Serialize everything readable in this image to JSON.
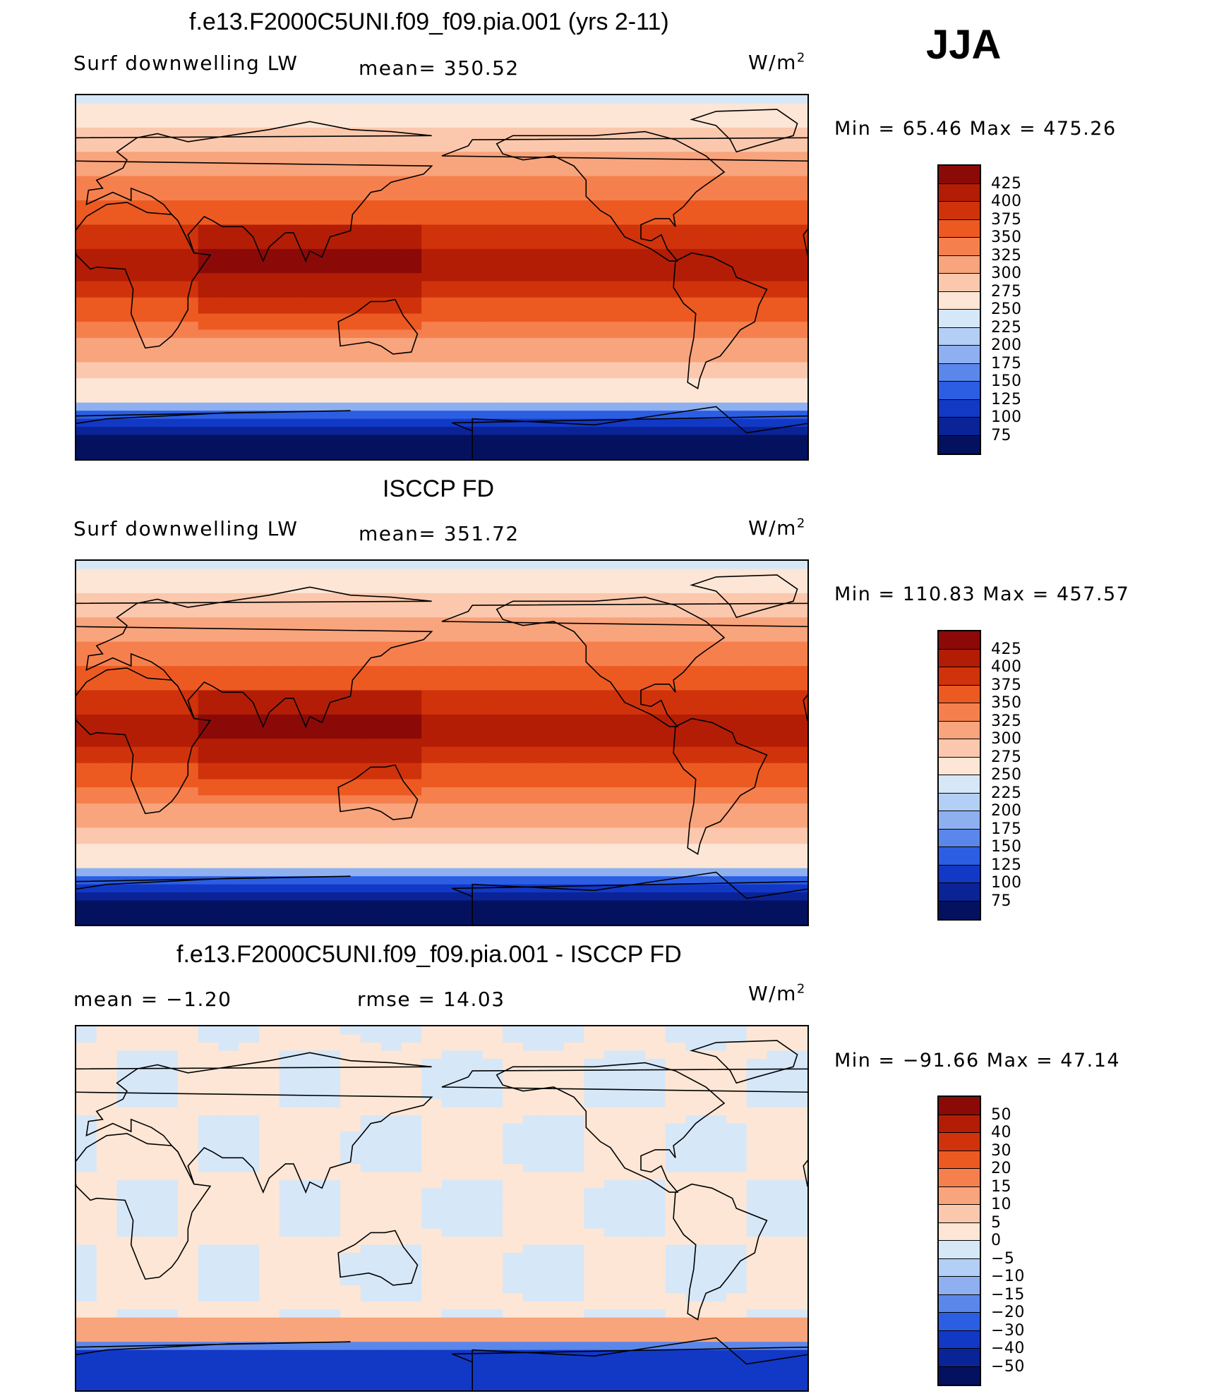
{
  "season": "JJA",
  "panels": [
    {
      "title": "f.e13.F2000C5UNI.f09_f09.pia.001 (yrs 2-11)",
      "left_label": "Surf  downwelling  LW",
      "center_label": "mean=  350.52",
      "units_text": "W/m",
      "units_sup": "2",
      "minmax": "Min  =    65.46  Max  =  475.26",
      "map_kind": "model"
    },
    {
      "title": "ISCCP FD",
      "left_label": "Surf  downwelling  LW",
      "center_label": "mean=  351.72",
      "units_text": "W/m",
      "units_sup": "2",
      "minmax": "Min  =  110.83  Max  =  457.57",
      "map_kind": "obs"
    },
    {
      "title": "f.e13.F2000C5UNI.f09_f09.pia.001 - ISCCP FD",
      "left_label": "mean  =    −1.20",
      "center_label": "rmse  =    14.03",
      "units_text": "W/m",
      "units_sup": "2",
      "minmax": "Min  =  −91.66  Max  =    47.14",
      "map_kind": "diff"
    }
  ],
  "chart_data": [
    {
      "type": "heatmap",
      "title": "f.e13.F2000C5UNI.f09_f09.pia.001 (yrs 2-11)",
      "variable": "Surf  downwelling  LW",
      "units": "W/m2",
      "mean": 350.52,
      "min": 65.46,
      "max": 475.26,
      "colorbar_levels": [
        425,
        400,
        375,
        350,
        325,
        300,
        275,
        250,
        225,
        200,
        175,
        150,
        125,
        100,
        75
      ],
      "colorbar_colors": [
        "#8b0a08",
        "#b31d06",
        "#d0330b",
        "#ec5a22",
        "#f5804e",
        "#f8a47c",
        "#fbc8ad",
        "#fde6d5",
        "#d6e7f8",
        "#b4cff5",
        "#8eb0f1",
        "#5c87ea",
        "#2c5ee3",
        "#1238c6",
        "#0a2396",
        "#04115f"
      ]
    },
    {
      "type": "heatmap",
      "title": "ISCCP FD",
      "variable": "Surf  downwelling  LW",
      "units": "W/m2",
      "mean": 351.72,
      "min": 110.83,
      "max": 457.57,
      "colorbar_levels": [
        425,
        400,
        375,
        350,
        325,
        300,
        275,
        250,
        225,
        200,
        175,
        150,
        125,
        100,
        75
      ],
      "colorbar_colors": [
        "#8b0a08",
        "#b31d06",
        "#d0330b",
        "#ec5a22",
        "#f5804e",
        "#f8a47c",
        "#fbc8ad",
        "#fde6d5",
        "#d6e7f8",
        "#b4cff5",
        "#8eb0f1",
        "#5c87ea",
        "#2c5ee3",
        "#1238c6",
        "#0a2396",
        "#04115f"
      ]
    },
    {
      "type": "heatmap",
      "title": "f.e13.F2000C5UNI.f09_f09.pia.001 - ISCCP FD",
      "units": "W/m2",
      "mean": -1.2,
      "rmse": 14.03,
      "min": -91.66,
      "max": 47.14,
      "colorbar_levels": [
        "50",
        "40",
        "30",
        "20",
        "15",
        "10",
        "5",
        "0",
        "−5",
        "−10",
        "−15",
        "−20",
        "−30",
        "−40",
        "−50"
      ],
      "colorbar_colors": [
        "#8b0a08",
        "#b31d06",
        "#d0330b",
        "#ec5a22",
        "#f5804e",
        "#f8a47c",
        "#fbc8ad",
        "#fde6d5",
        "#d6e7f8",
        "#b4cff5",
        "#8eb0f1",
        "#5c87ea",
        "#2c5ee3",
        "#1238c6",
        "#0a2396",
        "#04115f"
      ]
    }
  ]
}
